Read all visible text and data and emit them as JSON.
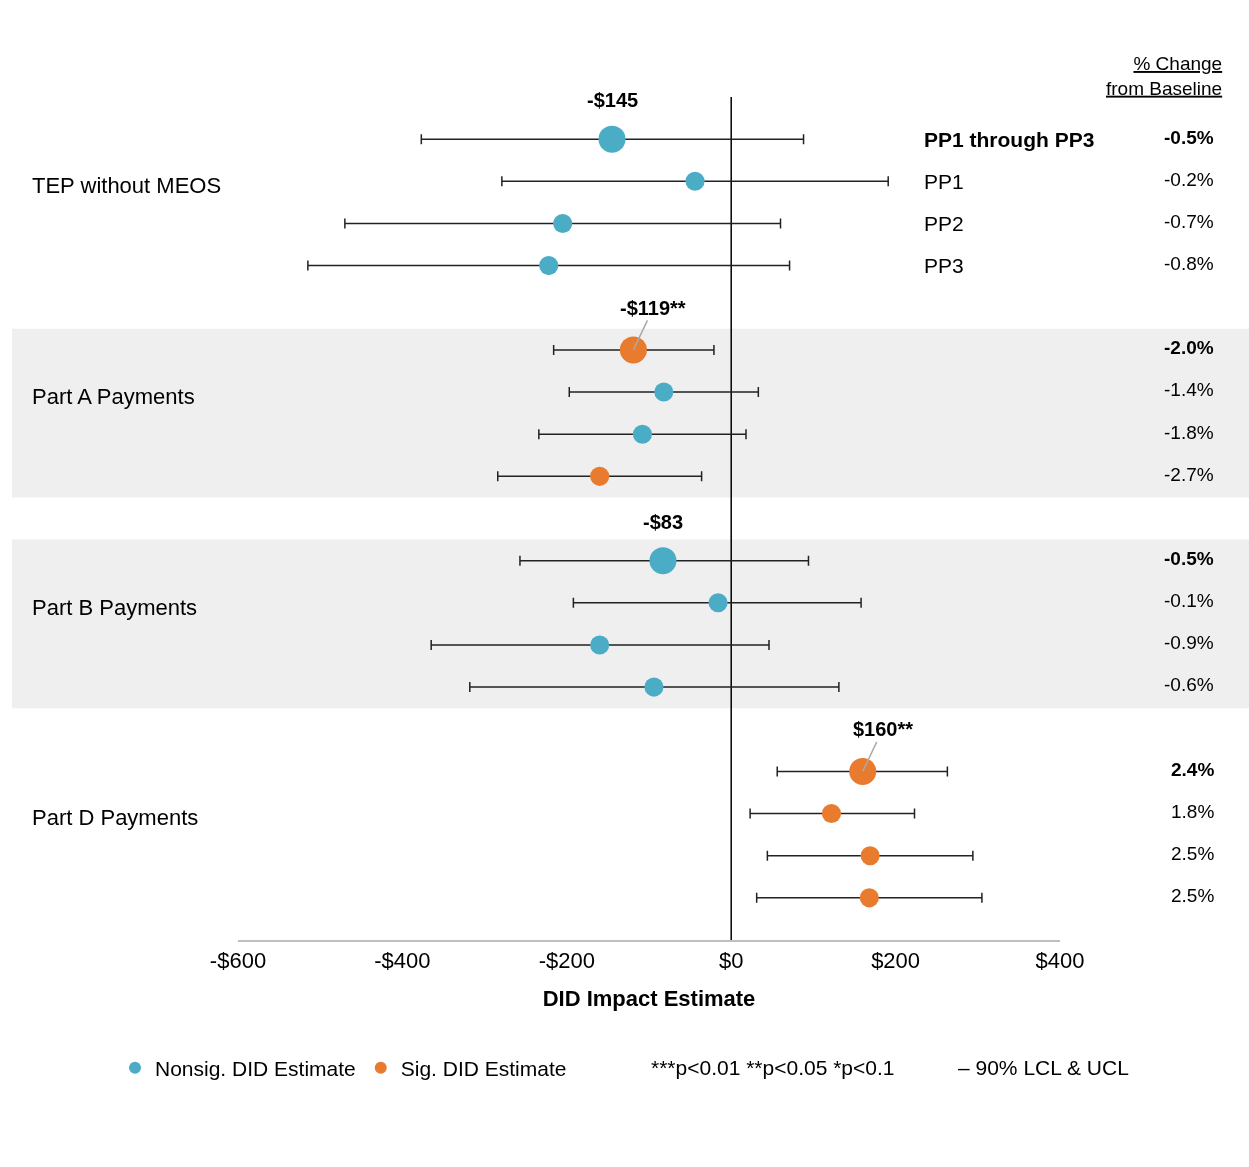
{
  "chart_data": {
    "type": "scatter",
    "orientation": "horizontal",
    "xlabel": "DID Impact Estimate",
    "categories": [
      "PP1 through PP3",
      "PP1",
      "PP2",
      "PP3",
      null,
      null,
      null,
      null,
      null,
      null,
      null,
      null,
      null,
      null,
      null,
      null
    ],
    "y2_categories": [
      "-0.5%",
      "-0.2%",
      "-0.7%",
      "-0.8%",
      "-2.0%",
      "-1.4%",
      "-1.8%",
      "-2.7%",
      "-0.5%",
      "-0.1%",
      "-0.9%",
      "-0.6%",
      "2.4%",
      "1.8%",
      "2.5%",
      "2.5%"
    ],
    "series": [
      {
        "name": "Nonsig. DID Estimate",
        "color": "#4bacc6",
        "values": [
          -145,
          -44,
          -205,
          -222,
          null,
          -82,
          -108,
          null,
          -83,
          -16,
          -160,
          -94,
          null,
          null,
          null,
          null
        ],
        "sizes": [
          1,
          0.5,
          0.5,
          0.5,
          null,
          0.5,
          0.5,
          null,
          1,
          0.5,
          0.5,
          0.5,
          null,
          null,
          null,
          null
        ],
        "errors": [
          [
            -377,
            88
          ],
          [
            -279,
            191
          ],
          [
            -470,
            60
          ],
          [
            -515,
            71
          ],
          null,
          [
            -197,
            33
          ],
          [
            -234,
            18
          ],
          null,
          [
            -257,
            94
          ],
          [
            -192,
            158
          ],
          [
            -365,
            46
          ],
          [
            -318,
            131
          ],
          null,
          null,
          null,
          null
        ],
        "value_labels": [
          "-$145",
          null,
          null,
          null,
          null,
          null,
          null,
          null,
          "-$83",
          null,
          null,
          null,
          null,
          null,
          null,
          null
        ]
      },
      {
        "name": "Sig. DID Estimate",
        "color": "#e87b2e",
        "values": [
          null,
          null,
          null,
          null,
          -119,
          null,
          null,
          -160,
          null,
          null,
          null,
          null,
          160,
          122,
          169,
          168
        ],
        "sizes": [
          null,
          null,
          null,
          null,
          1,
          null,
          null,
          0.5,
          null,
          null,
          null,
          null,
          1,
          0.5,
          0.5,
          0.5
        ],
        "errors": [
          null,
          null,
          null,
          null,
          [
            -216,
            -21
          ],
          null,
          null,
          [
            -284,
            -36
          ],
          null,
          null,
          null,
          null,
          [
            56,
            263
          ],
          [
            23,
            223
          ],
          [
            44,
            294
          ],
          [
            31,
            305
          ]
        ],
        "value_labels": [
          null,
          null,
          null,
          null,
          "-$119**",
          null,
          null,
          null,
          null,
          null,
          null,
          null,
          "$160**",
          null,
          null,
          null
        ]
      }
    ],
    "xlim": [
      -600,
      400
    ],
    "xticks": [
      {
        "value": -600,
        "label": "-$600"
      },
      {
        "value": -400,
        "label": "-$400"
      },
      {
        "value": -200,
        "label": "-$200"
      },
      {
        "value": 0,
        "label": "$0"
      },
      {
        "value": 200,
        "label": "$200"
      },
      {
        "value": 400,
        "label": "$400"
      }
    ],
    "ref_lines": [
      {
        "axis": "x",
        "value": 0,
        "color": "#000000"
      }
    ],
    "annotations": [
      "TEP without MEOS",
      "Part A Payments",
      "Part B Payments",
      "Part D Payments",
      "% Change\nfrom Baseline",
      "***p<0.01 **p<0.05 *p<0.1",
      "– 90% LCL & UCL"
    ],
    "legend": "bottom",
    "grid": false,
    "marker": "circle"
  }
}
